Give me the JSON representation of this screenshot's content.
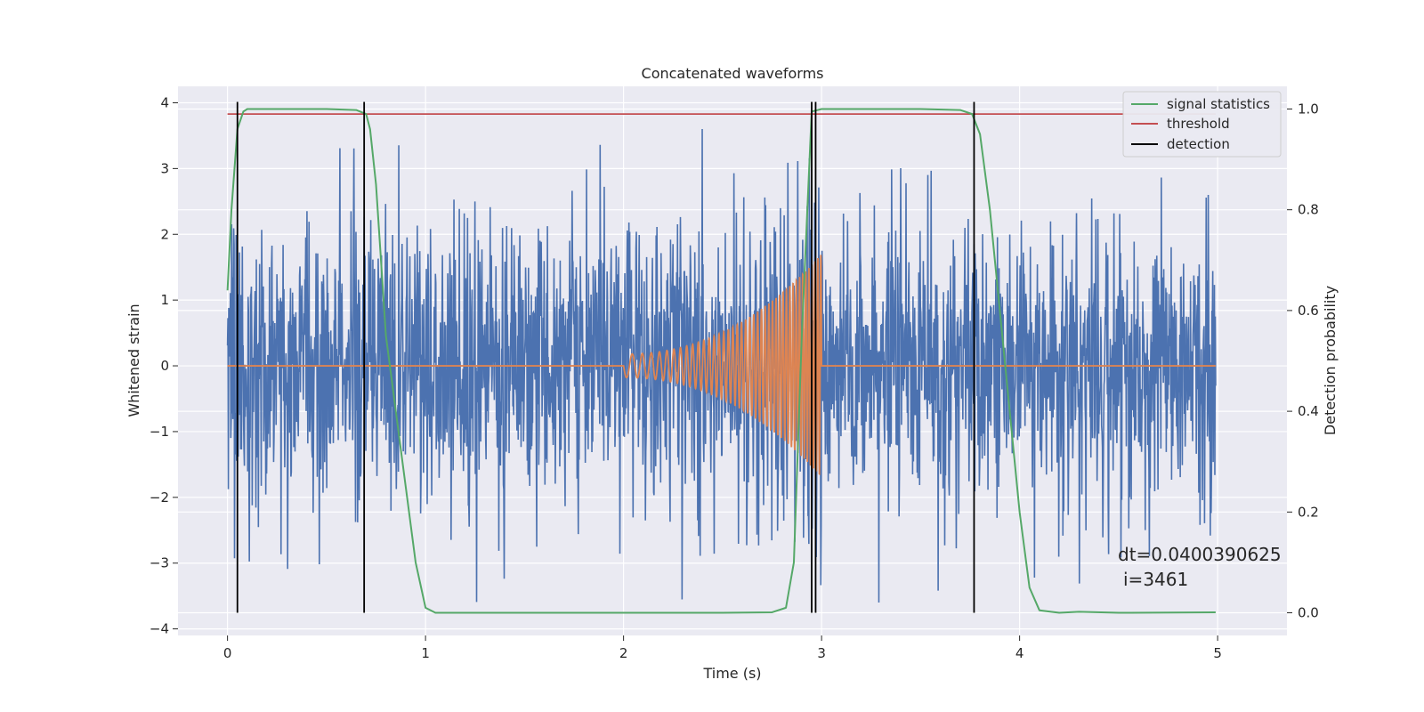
{
  "chart_data": {
    "type": "line",
    "title": "Concatenated waveforms",
    "xlabel": "Time (s)",
    "ylabel_left": "Whitened strain",
    "ylabel_right": "Detection probability",
    "xlim": [
      -0.25,
      5.35
    ],
    "ylim_left": [
      -4.1,
      4.25
    ],
    "ylim_right": [
      -0.045,
      1.045
    ],
    "xticks": [
      0,
      1,
      2,
      3,
      4,
      5
    ],
    "yticks_left": [
      -4,
      -3,
      -2,
      -1,
      0,
      1,
      2,
      3,
      4
    ],
    "yticks_right": [
      0.0,
      0.2,
      0.4,
      0.6,
      0.8,
      1.0
    ],
    "xtick_labels": [
      "0",
      "1",
      "2",
      "3",
      "4",
      "5"
    ],
    "ytick_labels_left": [
      "−4",
      "−3",
      "−2",
      "−1",
      "0",
      "1",
      "2",
      "3",
      "4"
    ],
    "ytick_labels_right": [
      "0.0",
      "0.2",
      "0.4",
      "0.6",
      "0.8",
      "1.0"
    ],
    "grid": true,
    "legend_position": "top-right",
    "colors": {
      "strain": "#4c72b0",
      "template": "#dd8452",
      "signal_statistics": "#55a868",
      "threshold": "#c44e52",
      "detection": "#000000",
      "axes_bg": "#eaeaf2",
      "grid": "#ffffff"
    },
    "series": [
      {
        "name": "signal statistics",
        "axis": "right",
        "x": [
          0.0,
          0.02,
          0.05,
          0.08,
          0.1,
          0.15,
          0.3,
          0.5,
          0.65,
          0.7,
          0.72,
          0.75,
          0.8,
          0.85,
          0.9,
          0.95,
          1.0,
          1.05,
          1.2,
          1.5,
          2.0,
          2.5,
          2.75,
          2.82,
          2.86,
          2.9,
          2.95,
          3.0,
          3.2,
          3.5,
          3.7,
          3.76,
          3.8,
          3.85,
          3.9,
          3.95,
          4.0,
          4.05,
          4.1,
          4.2,
          4.3,
          4.5,
          4.99
        ],
        "y": [
          0.64,
          0.8,
          0.96,
          0.995,
          1.0,
          1.0,
          1.0,
          1.0,
          0.998,
          0.99,
          0.96,
          0.85,
          0.55,
          0.4,
          0.25,
          0.1,
          0.01,
          0.0,
          0.0,
          0.0,
          0.0,
          0.0,
          0.001,
          0.01,
          0.1,
          0.55,
          0.995,
          1.0,
          1.0,
          1.0,
          0.998,
          0.99,
          0.95,
          0.8,
          0.6,
          0.4,
          0.2,
          0.05,
          0.005,
          0.0,
          0.002,
          0.0,
          0.001
        ]
      },
      {
        "name": "threshold",
        "axis": "right",
        "x": [
          0.0,
          4.99
        ],
        "y": [
          0.99,
          0.99
        ]
      },
      {
        "name": "detection",
        "axis": "right",
        "x_positions": [
          0.05,
          0.69,
          2.95,
          2.97,
          3.77
        ],
        "y_range": [
          0.0,
          1.0
        ]
      },
      {
        "name": "",
        "axis": "left",
        "description_type": "noise",
        "x_range": [
          0.0,
          4.99
        ],
        "amplitude_typical": 1.1,
        "amplitude_peak": 3.6
      },
      {
        "name": "",
        "axis": "left",
        "description_type": "chirp",
        "x_start": 2.0,
        "x_end": 3.0,
        "amplitude_start": 0.18,
        "amplitude_end": 1.7,
        "flat_segments": [
          [
            0.0,
            2.0
          ],
          [
            3.0,
            4.99
          ]
        ]
      }
    ],
    "annotation_lines": [
      "dt=0.0400390625",
      "i=3461"
    ]
  }
}
